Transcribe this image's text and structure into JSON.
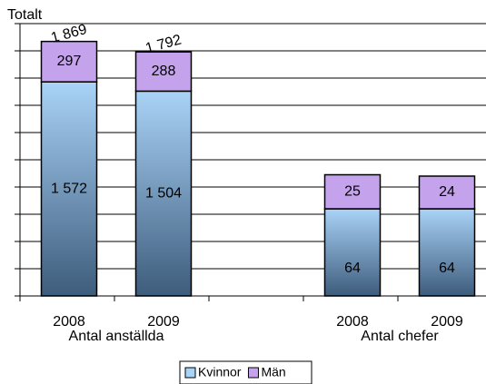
{
  "chart_data": {
    "type": "bar",
    "stacked": true,
    "title": "Totalt",
    "grid": true,
    "series": [
      {
        "name": "Kvinnor",
        "color": "#a9d3f7"
      },
      {
        "name": "Män",
        "color": "#c4a3ec"
      }
    ],
    "groups": [
      {
        "name": "Antal anställda",
        "categories": [
          "2008",
          "2009"
        ],
        "ylim": [
          0,
          2000
        ],
        "yticks": [
          0,
          200,
          400,
          600,
          800,
          1000,
          1200,
          1400,
          1600,
          1800,
          2000
        ],
        "values": [
          [
            1572,
            1504
          ],
          [
            297,
            288
          ]
        ],
        "value_labels": [
          [
            "1 572",
            "1 504"
          ],
          [
            "297",
            "288"
          ]
        ],
        "totals": [
          1869,
          1792
        ],
        "total_labels": [
          "1 869",
          "1 792"
        ]
      },
      {
        "name": "Antal chefer",
        "categories": [
          "2008",
          "2009"
        ],
        "ylim": [
          0,
          200
        ],
        "values": [
          [
            64,
            64
          ],
          [
            25,
            24
          ]
        ]
      }
    ]
  }
}
